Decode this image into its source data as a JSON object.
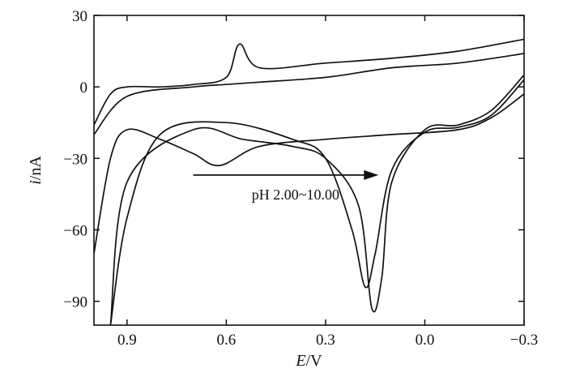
{
  "chart_data": {
    "type": "line",
    "title": "",
    "xlabel": {
      "var": "E",
      "unit": "/V"
    },
    "ylabel": {
      "var": "i",
      "unit": "/nA"
    },
    "xlim": [
      1.0,
      -0.3
    ],
    "ylim": [
      -100,
      30
    ],
    "x_inverted": true,
    "x_ticks": [
      0.9,
      0.6,
      0.3,
      0.0,
      -0.3
    ],
    "x_tick_labels": [
      "0.9",
      "0.6",
      "0.3",
      "0.0",
      "−0.3"
    ],
    "y_ticks": [
      30,
      0,
      -30,
      -60,
      -90
    ],
    "y_tick_labels": [
      "30",
      "0",
      "−30",
      "−60",
      "−90"
    ],
    "grid": false,
    "annotation": {
      "text": "pH 2.00~10.00",
      "arrow_from_x": 0.7,
      "arrow_to_x": 0.14,
      "arrow_y": -37
    },
    "series": [
      {
        "x": [
          1.0,
          0.95,
          0.9,
          0.8,
          0.7,
          0.6,
          0.56,
          0.5,
          0.3,
          0.1,
          -0.1,
          -0.3
        ],
        "y": [
          -16,
          -3,
          0,
          0,
          1,
          4,
          18,
          8,
          10,
          12,
          15,
          20
        ]
      },
      {
        "x": [
          1.0,
          0.9,
          0.7,
          0.6,
          0.5,
          0.3,
          0.1,
          -0.1,
          -0.3
        ],
        "y": [
          -20,
          -4,
          0,
          1,
          2,
          4,
          8,
          10,
          14
        ]
      },
      {
        "x": [
          -0.3,
          -0.2,
          -0.1,
          0.1,
          0.3,
          0.5,
          0.62,
          0.7,
          0.8,
          0.9,
          0.95,
          1.0
        ],
        "y": [
          -3,
          -13,
          -18,
          -20,
          -22,
          -25,
          -33,
          -28,
          -22,
          -18,
          -30,
          -70
        ]
      },
      {
        "x": [
          -0.3,
          -0.2,
          -0.1,
          0.0,
          0.1,
          0.13,
          0.16,
          0.2,
          0.3,
          0.4,
          0.55,
          0.7,
          0.9,
          0.95
        ],
        "y": [
          5,
          -10,
          -16,
          -18,
          -40,
          -80,
          -93,
          -50,
          -30,
          -25,
          -22,
          -18,
          -40,
          -100
        ]
      },
      {
        "x": [
          -0.3,
          -0.2,
          -0.1,
          0.0,
          0.1,
          0.15,
          0.18,
          0.22,
          0.3,
          0.4,
          0.6,
          0.8,
          0.9,
          0.95
        ],
        "y": [
          3,
          -12,
          -17,
          -19,
          -35,
          -70,
          -84,
          -60,
          -30,
          -22,
          -15,
          -20,
          -55,
          -100
        ]
      }
    ]
  }
}
